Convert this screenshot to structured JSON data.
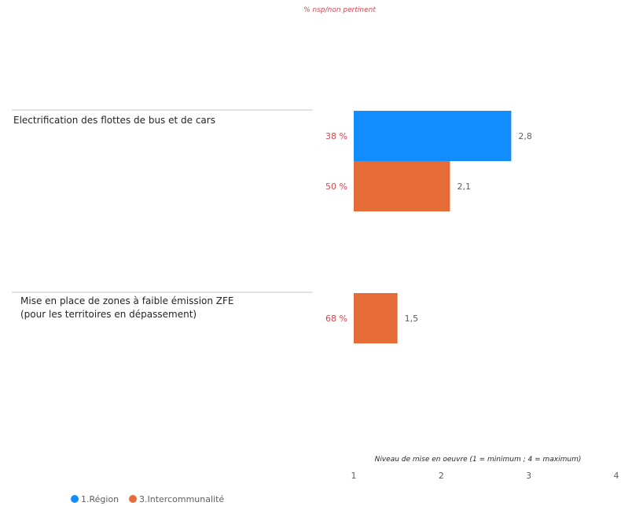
{
  "header": {
    "nsp_label": "% nsp/non pertinent"
  },
  "chart_data": {
    "type": "bar",
    "orientation": "horizontal",
    "xlabel": "Niveau de mise en oeuvre (1 = minimum ; 4 = maximum)",
    "xlim": [
      1,
      4
    ],
    "xticks": [
      "1",
      "2",
      "3",
      "4"
    ],
    "categories": [
      "Electrification des flottes de bus et de cars",
      "Mise en place de zones à faible émission ZFE (pour les territoires en dépassement)"
    ],
    "series": [
      {
        "name": "1.Région",
        "color": "#118DFF",
        "values": [
          2.8,
          null
        ],
        "labels": [
          "2,8",
          null
        ],
        "nsp": [
          "38 %",
          null
        ]
      },
      {
        "name": "3.Intercommunalité",
        "color": "#E66C37",
        "values": [
          2.1,
          1.5
        ],
        "labels": [
          "2,1",
          "1,5"
        ],
        "nsp": [
          "50 %",
          "68 %"
        ]
      }
    ],
    "legend_position": "bottom-left"
  },
  "colors": {
    "nsp_text": "#D64550",
    "label_text": "#605E5C",
    "separator": "#C8C6C4"
  }
}
